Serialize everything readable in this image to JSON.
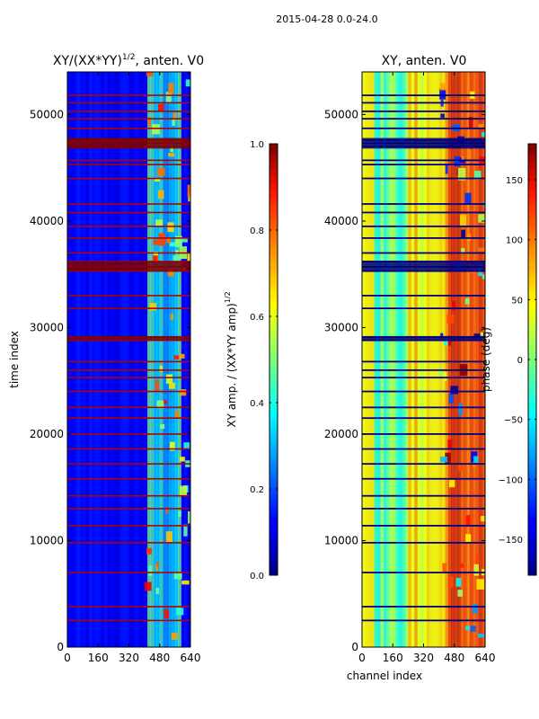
{
  "suptitle": "2015-04-28 0.0-24.0",
  "chart_data": [
    {
      "type": "heatmap",
      "title": "XY/(XX*YY)^1/2, anten. V0",
      "title_main": "XY/(XX*YY)",
      "title_sup": "1/2",
      "title_tail": ", anten. V0",
      "xlabel": "",
      "ylabel": "time index",
      "xlim": [
        0,
        640
      ],
      "ylim": [
        0,
        54000
      ],
      "xticks": [
        0,
        160,
        320,
        480,
        640
      ],
      "yticks": [
        0,
        10000,
        20000,
        30000,
        40000,
        50000
      ],
      "colormap": "jet",
      "colorbar": {
        "label": "XY amp. / (XX*YY amp)^1/2",
        "label_main": "XY amp. / (XX*YY amp)",
        "label_sup": "1/2",
        "range": [
          0.0,
          1.0
        ],
        "ticks": [
          "0.0",
          "0.2",
          "0.4",
          "0.6",
          "0.8",
          "1.0"
        ]
      },
      "flagged_rows": [
        2500,
        3800,
        7000,
        9800,
        11400,
        13000,
        14200,
        15800,
        17200,
        18600,
        20000,
        21500,
        22500,
        24000,
        25300,
        26000,
        26800,
        28800,
        29100,
        31800,
        33000,
        35300,
        35700,
        36200,
        37000,
        38400,
        39500,
        40800,
        41600,
        44000,
        45300,
        45700,
        47000,
        47300,
        47600,
        48700,
        49600,
        50300,
        51100,
        51800
      ]
    },
    {
      "type": "heatmap",
      "title": "XY, anten. V0",
      "xlabel": "channel index",
      "ylabel": "",
      "xlim": [
        0,
        640
      ],
      "ylim": [
        0,
        54000
      ],
      "xticks": [
        0,
        160,
        320,
        480,
        640
      ],
      "yticks": [
        0,
        10000,
        20000,
        30000,
        40000,
        50000
      ],
      "colormap": "jet",
      "colorbar": {
        "label": "phase (deg)",
        "range": [
          -180,
          180
        ],
        "ticks": [
          "−150",
          "−100",
          "−50",
          "0",
          "50",
          "100",
          "150"
        ]
      },
      "flagged_rows": [
        2500,
        3800,
        7000,
        9800,
        11400,
        13000,
        14200,
        15800,
        17200,
        18600,
        20000,
        21500,
        22500,
        24000,
        25300,
        26000,
        26800,
        28800,
        29100,
        31800,
        33000,
        35300,
        35700,
        36200,
        37000,
        38400,
        39500,
        40800,
        41600,
        44000,
        45300,
        45700,
        47000,
        47300,
        47600,
        48700,
        49600,
        50300,
        51100,
        51800
      ]
    }
  ]
}
